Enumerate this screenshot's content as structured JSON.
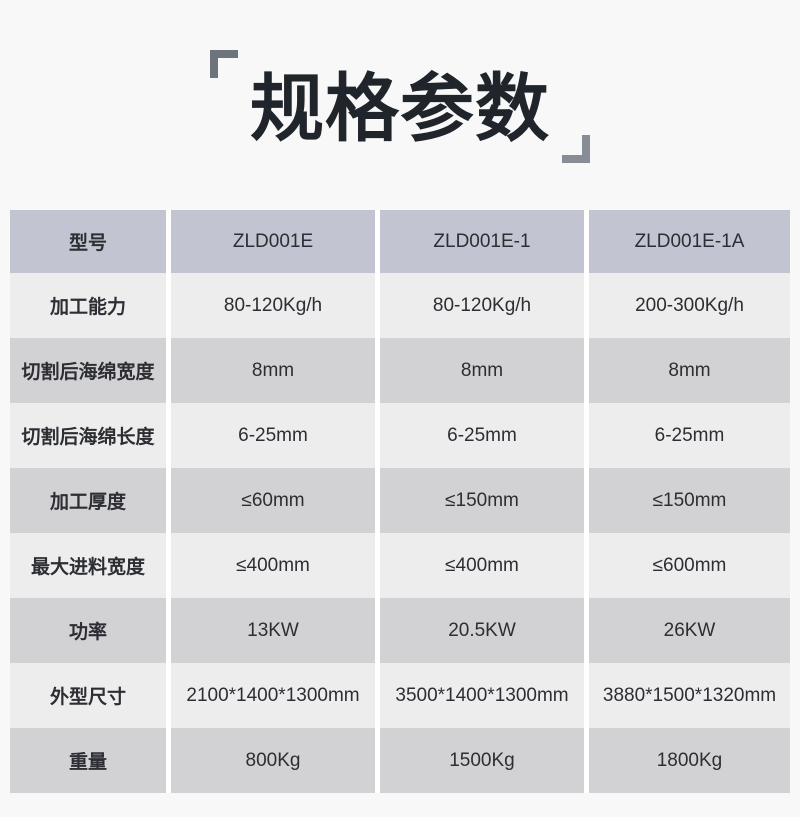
{
  "title": {
    "text": "规格参数"
  },
  "colors": {
    "page_bg": "#f8f8f9",
    "header_bg": "#c2c5d1",
    "row_light": "#ededee",
    "row_dark": "#d2d2d4",
    "text": "#2c2e33",
    "bracket": "#6e747d"
  },
  "table": {
    "header": {
      "label": "型号",
      "values": [
        "ZLD001E",
        "ZLD001E-1",
        "ZLD001E-1A"
      ]
    },
    "rows": [
      {
        "label": "加工能力",
        "values": [
          "80-120Kg/h",
          "80-120Kg/h",
          "200-300Kg/h"
        ]
      },
      {
        "label": "切割后海绵宽度",
        "values": [
          "8mm",
          "8mm",
          "8mm"
        ]
      },
      {
        "label": "切割后海绵长度",
        "values": [
          "6-25mm",
          "6-25mm",
          "6-25mm"
        ]
      },
      {
        "label": "加工厚度",
        "values": [
          "≤60mm",
          "≤150mm",
          "≤150mm"
        ]
      },
      {
        "label": "最大进料宽度",
        "values": [
          "≤400mm",
          "≤400mm",
          "≤600mm"
        ]
      },
      {
        "label": "功率",
        "values": [
          "13KW",
          "20.5KW",
          "26KW"
        ]
      },
      {
        "label": "外型尺寸",
        "values": [
          "2100*1400*1300mm",
          "3500*1400*1300mm",
          "3880*1500*1320mm"
        ]
      },
      {
        "label": "重量",
        "values": [
          "800Kg",
          "1500Kg",
          "1800Kg"
        ]
      }
    ]
  }
}
